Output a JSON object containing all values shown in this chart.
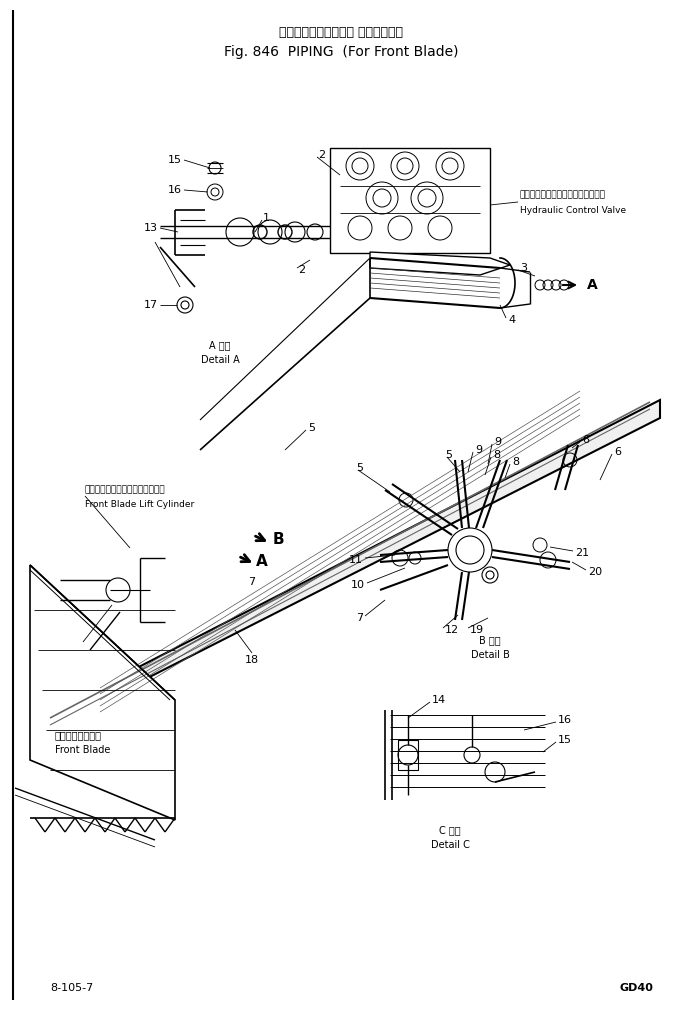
{
  "title_jp": "パイピング（フロント ブレード用）",
  "title_en": "Fig. 846  PIPING  (For Front Blade)",
  "fig_number": "8-105-7",
  "model": "GD40",
  "bg_color": "#ffffff",
  "lc": "#000000",
  "tc": "#000000",
  "figsize": [
    6.82,
    10.14
  ],
  "dpi": 100,
  "hv_label_jp": "ハイドロリックコントロールバルブ",
  "hv_label_en": "Hydraulic Control Valve",
  "detail_a_jp": "A 詳細",
  "detail_a_en": "Detail A",
  "detail_b_jp": "B 詳細",
  "detail_b_en": "Detail B",
  "detail_c_jp": "C 詳細",
  "detail_c_en": "Detail C",
  "lift_cyl_jp": "フロントブレードリフトシリンダ",
  "lift_cyl_en": "Front Blade Lift Cylinder",
  "front_blade_jp": "フロントブレード",
  "front_blade_en": "Front Blade"
}
